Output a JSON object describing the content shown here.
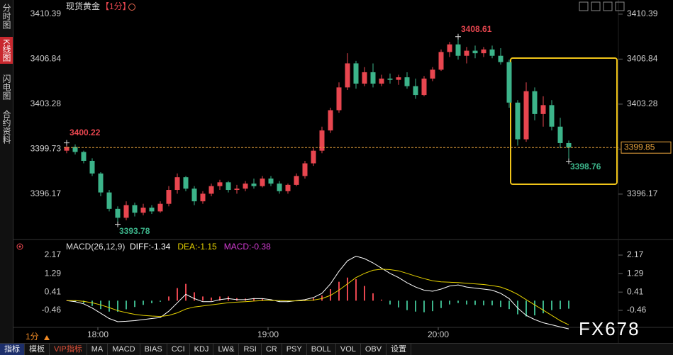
{
  "sidebar": {
    "tabs": [
      "分时图",
      "K线图",
      "闪电图",
      "合约资料"
    ]
  },
  "toolbar": {
    "items": [
      "指标",
      "模板",
      "VIP指标",
      "MA",
      "MACD",
      "BIAS",
      "CCI",
      "KDJ",
      "LW&",
      "RSI",
      "CR",
      "PSY",
      "BOLL",
      "VOL",
      "OBV",
      "设置"
    ]
  },
  "period_selector": "1分",
  "watermark": "FX678",
  "chart_data": [
    {
      "type": "candlestick",
      "title": "现货黄金",
      "period": "【1分】",
      "up_color": "#e8464f",
      "down_color": "#3cb48a",
      "xlim": [
        1068,
        1263
      ],
      "xticks": [
        {
          "value": 1080,
          "label": "18:00"
        },
        {
          "value": 1140,
          "label": "19:00"
        },
        {
          "value": 1200,
          "label": "20:00"
        }
      ],
      "ylim": [
        3393.03,
        3411.06
      ],
      "yticks": [
        3396.17,
        3399.73,
        3403.28,
        3406.84,
        3410.39
      ],
      "x": [
        1069,
        1072,
        1075,
        1078,
        1081,
        1084,
        1087,
        1090,
        1093,
        1096,
        1099,
        1102,
        1105,
        1108,
        1111,
        1114,
        1117,
        1120,
        1123,
        1126,
        1129,
        1132,
        1135,
        1138,
        1141,
        1144,
        1147,
        1150,
        1153,
        1156,
        1159,
        1162,
        1165,
        1168,
        1171,
        1174,
        1177,
        1180,
        1183,
        1186,
        1189,
        1192,
        1195,
        1198,
        1201,
        1204,
        1207,
        1210,
        1213,
        1216,
        1219,
        1222,
        1225,
        1228,
        1231,
        1234,
        1237,
        1240,
        1243,
        1246
      ],
      "candles": [
        [
          3399.6,
          3400.22,
          3399.4,
          3399.9
        ],
        [
          3399.9,
          3400.1,
          3399.3,
          3399.5
        ],
        [
          3399.5,
          3399.6,
          3398.6,
          3398.8
        ],
        [
          3398.8,
          3399.0,
          3397.6,
          3397.8
        ],
        [
          3397.8,
          3397.9,
          3396.0,
          3396.3
        ],
        [
          3396.3,
          3396.5,
          3394.8,
          3395.0
        ],
        [
          3395.0,
          3395.2,
          3393.78,
          3394.3
        ],
        [
          3394.3,
          3395.6,
          3394.1,
          3395.3
        ],
        [
          3395.3,
          3395.5,
          3394.4,
          3394.7
        ],
        [
          3394.7,
          3395.4,
          3394.5,
          3395.1
        ],
        [
          3395.1,
          3395.3,
          3394.6,
          3394.8
        ],
        [
          3394.8,
          3395.6,
          3394.7,
          3395.4
        ],
        [
          3395.4,
          3396.8,
          3395.2,
          3396.5
        ],
        [
          3396.5,
          3397.8,
          3396.2,
          3397.5
        ],
        [
          3397.5,
          3397.6,
          3396.4,
          3396.6
        ],
        [
          3396.6,
          3396.8,
          3395.3,
          3395.6
        ],
        [
          3395.6,
          3396.4,
          3395.4,
          3396.2
        ],
        [
          3396.2,
          3397.0,
          3396.0,
          3396.8
        ],
        [
          3396.8,
          3397.3,
          3396.5,
          3397.1
        ],
        [
          3397.1,
          3397.2,
          3396.3,
          3396.5
        ],
        [
          3396.5,
          3396.9,
          3396.2,
          3396.6
        ],
        [
          3396.6,
          3397.2,
          3396.4,
          3397.0
        ],
        [
          3397.0,
          3397.4,
          3396.6,
          3396.8
        ],
        [
          3396.8,
          3397.6,
          3396.7,
          3397.4
        ],
        [
          3397.4,
          3397.6,
          3396.8,
          3397.0
        ],
        [
          3397.0,
          3397.2,
          3396.2,
          3396.4
        ],
        [
          3396.4,
          3397.0,
          3396.2,
          3396.9
        ],
        [
          3396.9,
          3397.8,
          3396.8,
          3397.6
        ],
        [
          3397.6,
          3398.8,
          3397.4,
          3398.6
        ],
        [
          3398.6,
          3399.8,
          3398.4,
          3399.6
        ],
        [
          3399.6,
          3401.5,
          3399.4,
          3401.2
        ],
        [
          3401.2,
          3403.0,
          3401.0,
          3402.8
        ],
        [
          3402.8,
          3405.0,
          3402.6,
          3404.6
        ],
        [
          3404.6,
          3407.3,
          3404.4,
          3406.5
        ],
        [
          3406.5,
          3406.7,
          3404.5,
          3404.9
        ],
        [
          3404.9,
          3406.2,
          3404.7,
          3405.8
        ],
        [
          3405.8,
          3406.5,
          3404.6,
          3404.9
        ],
        [
          3404.9,
          3405.6,
          3404.7,
          3405.3
        ],
        [
          3405.3,
          3405.7,
          3404.9,
          3405.2
        ],
        [
          3405.2,
          3405.6,
          3404.8,
          3405.4
        ],
        [
          3405.4,
          3405.8,
          3404.5,
          3404.7
        ],
        [
          3404.7,
          3405.3,
          3403.7,
          3404.0
        ],
        [
          3404.0,
          3405.5,
          3403.9,
          3405.3
        ],
        [
          3405.3,
          3406.2,
          3405.1,
          3406.0
        ],
        [
          3406.0,
          3407.6,
          3405.9,
          3407.4
        ],
        [
          3407.4,
          3408.2,
          3407.0,
          3408.0
        ],
        [
          3408.0,
          3408.61,
          3406.8,
          3407.1
        ],
        [
          3407.1,
          3407.8,
          3406.5,
          3407.5
        ],
        [
          3407.5,
          3407.9,
          3406.9,
          3407.3
        ],
        [
          3407.3,
          3407.8,
          3407.0,
          3407.6
        ],
        [
          3407.6,
          3407.9,
          3406.9,
          3407.1
        ],
        [
          3407.1,
          3407.7,
          3406.4,
          3406.6
        ],
        [
          3406.6,
          3406.8,
          3403.0,
          3403.4
        ],
        [
          3403.4,
          3403.6,
          3400.0,
          3400.5
        ],
        [
          3400.5,
          3405.0,
          3400.3,
          3404.3
        ],
        [
          3404.3,
          3404.6,
          3402.0,
          3402.5
        ],
        [
          3402.5,
          3403.9,
          3401.5,
          3403.2
        ],
        [
          3403.2,
          3403.6,
          3401.2,
          3401.5
        ],
        [
          3401.5,
          3402.2,
          3399.8,
          3400.2
        ],
        [
          3400.2,
          3400.4,
          3398.76,
          3399.85
        ]
      ]
    },
    {
      "type": "macd",
      "title": "MACD(26,12,9)",
      "ylim": [
        -1.54,
        2.44
      ],
      "yticks": [
        -0.46,
        0.41,
        1.29,
        2.17
      ],
      "up_color": "#e8464f",
      "down_color": "#3cb48a",
      "histogram": {
        "label": "MACD:-0.38",
        "color": "#d23cd2",
        "values": [
          0,
          -0.05,
          -0.12,
          -0.25,
          -0.4,
          -0.52,
          -0.53,
          -0.41,
          -0.3,
          -0.2,
          -0.12,
          -0.05,
          0.2,
          0.6,
          0.8,
          0.4,
          0.2,
          0.15,
          0.2,
          0.2,
          0.12,
          0.1,
          0.12,
          0.1,
          0.04,
          -0.05,
          -0.04,
          0.01,
          0.05,
          0.12,
          0.25,
          0.55,
          0.9,
          1.1,
          1.02,
          0.7,
          0.35,
          0.05,
          -0.18,
          -0.32,
          -0.45,
          -0.52,
          -0.55,
          -0.5,
          -0.35,
          -0.18,
          -0.11,
          -0.18,
          -0.2,
          -0.22,
          -0.22,
          -0.3,
          -0.4,
          -0.65,
          -0.75,
          -0.7,
          -0.6,
          -0.45,
          -0.4,
          -0.38
        ]
      },
      "series": [
        {
          "label": "DIFF:-1.34",
          "color": "#ffffff",
          "values": [
            0.0,
            -0.05,
            -0.15,
            -0.35,
            -0.6,
            -0.85,
            -1.0,
            -0.98,
            -0.95,
            -0.9,
            -0.85,
            -0.8,
            -0.5,
            -0.1,
            0.3,
            0.1,
            -0.05,
            -0.05,
            0.05,
            0.1,
            0.05,
            0.05,
            0.1,
            0.1,
            0.05,
            -0.05,
            -0.05,
            0.0,
            0.05,
            0.15,
            0.35,
            0.8,
            1.4,
            1.9,
            2.12,
            2.0,
            1.8,
            1.55,
            1.3,
            1.1,
            0.85,
            0.65,
            0.5,
            0.45,
            0.55,
            0.7,
            0.75,
            0.65,
            0.6,
            0.55,
            0.5,
            0.35,
            0.1,
            -0.35,
            -0.7,
            -0.9,
            -1.05,
            -1.15,
            -1.25,
            -1.34
          ]
        },
        {
          "label": "DEA:-1.15",
          "color": "#e6d200",
          "values": [
            0.0,
            0.0,
            -0.03,
            -0.1,
            -0.2,
            -0.33,
            -0.47,
            -0.57,
            -0.65,
            -0.7,
            -0.73,
            -0.75,
            -0.7,
            -0.58,
            -0.4,
            -0.3,
            -0.25,
            -0.2,
            -0.15,
            -0.1,
            -0.07,
            -0.05,
            -0.02,
            0.0,
            0.01,
            0.0,
            -0.01,
            -0.01,
            0.0,
            0.03,
            0.1,
            0.25,
            0.5,
            0.8,
            1.1,
            1.3,
            1.45,
            1.5,
            1.48,
            1.42,
            1.3,
            1.17,
            1.05,
            0.95,
            0.9,
            0.88,
            0.86,
            0.83,
            0.8,
            0.77,
            0.72,
            0.65,
            0.5,
            0.3,
            0.05,
            -0.2,
            -0.45,
            -0.7,
            -0.95,
            -1.15
          ]
        }
      ]
    }
  ]
}
